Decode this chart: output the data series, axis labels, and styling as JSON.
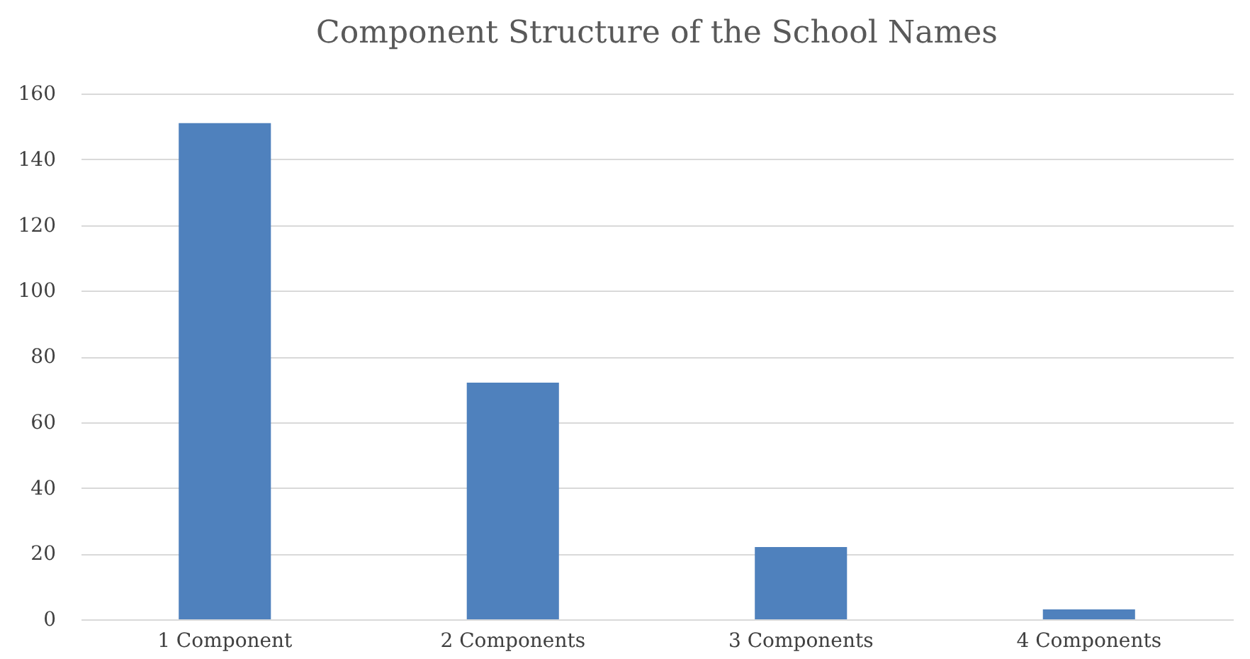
{
  "chart_data": {
    "type": "bar",
    "title": "Component Structure of the School Names",
    "categories": [
      "1 Component",
      "2 Components",
      "3 Components",
      "4 Components"
    ],
    "values": [
      151,
      72,
      22,
      3
    ],
    "color": "#4f81bd",
    "ylim": [
      0,
      160
    ],
    "yticks": [
      0,
      20,
      40,
      60,
      80,
      100,
      120,
      140,
      160
    ],
    "grid": "y"
  }
}
